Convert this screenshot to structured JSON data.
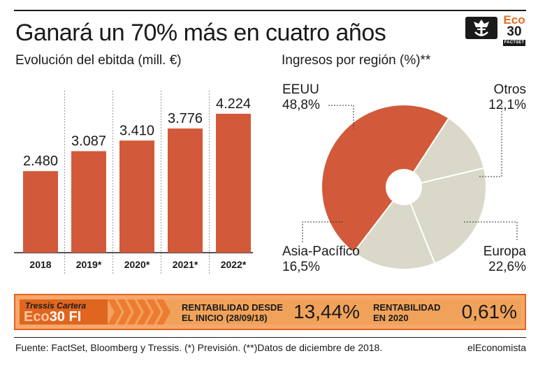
{
  "title": "Ganará un 70% más en cuatro años",
  "logo": {
    "eco": "Eco",
    "num": "30",
    "factset": "FACTSET"
  },
  "colors": {
    "bar": "#d2593a",
    "pie_main": "#d2593a",
    "pie_other": "#dad8c8",
    "accent": "#e0651f"
  },
  "chart_data": [
    {
      "type": "bar",
      "title": "Evolución del ebitda (mill. €)",
      "categories": [
        "2018",
        "2019*",
        "2020*",
        "2021*",
        "2022*"
      ],
      "values": [
        2480,
        3087,
        3410,
        3776,
        4224
      ],
      "value_labels": [
        "2.480",
        "3.087",
        "3.410",
        "3.776",
        "4.224"
      ],
      "ylim": [
        0,
        4224
      ]
    },
    {
      "type": "pie",
      "title": "Ingresos por región (%)**",
      "slices": [
        {
          "name": "EEUU",
          "value": 48.8,
          "label": "48,8%"
        },
        {
          "name": "Otros",
          "value": 12.1,
          "label": "12,1%"
        },
        {
          "name": "Europa",
          "value": 22.6,
          "label": "22,6%"
        },
        {
          "name": "Asia-Pacífico",
          "value": 16.5,
          "label": "16,5%"
        }
      ]
    }
  ],
  "banner": {
    "brand_top": "Tressis Cartera",
    "brand_eco": "Eco",
    "brand_rest": "30 FI",
    "label1_line1": "RENTABILIDAD DESDE",
    "label1_line2": "EL INICIO (28/09/18)",
    "value1": "13,44%",
    "label2_line1": "RENTABILIDAD",
    "label2_line2": "EN 2020",
    "value2": "0,61%"
  },
  "footer": {
    "source": "Fuente: FactSet, Bloomberg y Tressis. (*) Previsión. (**)Datos de diciembre de 2018.",
    "brand": "elEconomista"
  }
}
